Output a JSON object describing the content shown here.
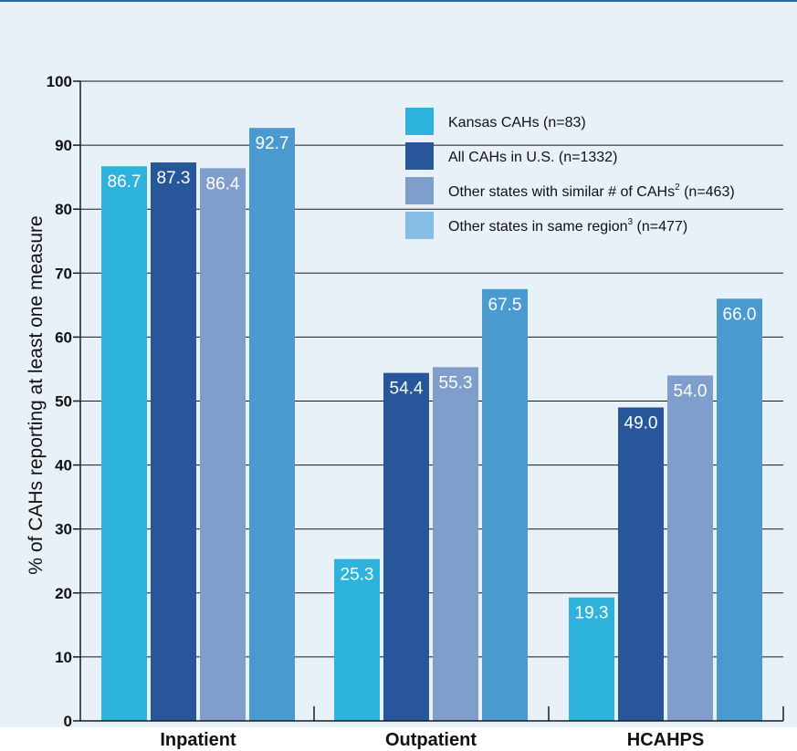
{
  "chart_data": {
    "type": "bar",
    "ylabel": "% of CAHs reporting at least one measure",
    "xlabel": "",
    "ylim": [
      0,
      100
    ],
    "yticks": [
      0,
      10,
      20,
      30,
      40,
      50,
      60,
      70,
      80,
      90,
      100
    ],
    "grid": true,
    "legend_position": "top-right",
    "categories": [
      "Inpatient",
      "Outpatient",
      "HCAHPS"
    ],
    "series": [
      {
        "name": "Kansas CAHs (n=83)",
        "color": "#2db3dc",
        "values": [
          86.7,
          25.3,
          19.3
        ],
        "labels": [
          "86.7",
          "25.3",
          "19.3"
        ]
      },
      {
        "name": "All CAHs in U.S. (n=1332)",
        "color": "#27579a",
        "values": [
          87.3,
          54.4,
          49.0
        ],
        "labels": [
          "87.3",
          "54.4",
          "49.0"
        ]
      },
      {
        "name": "Other states with similar # of CAHs",
        "sup": "2",
        "suffix": " (n=463)",
        "color": "#7f9ecb",
        "values": [
          86.4,
          55.3,
          54.0
        ],
        "labels": [
          "86.4",
          "55.3",
          "54.0"
        ]
      },
      {
        "name": "Other states in same region",
        "sup": "3",
        "suffix": " (n=477)",
        "color": "#4a9ad0",
        "legend_color": "#85bde4",
        "values": [
          92.7,
          67.5,
          66.0
        ],
        "labels": [
          "92.7",
          "67.5",
          "66.0"
        ]
      }
    ]
  }
}
